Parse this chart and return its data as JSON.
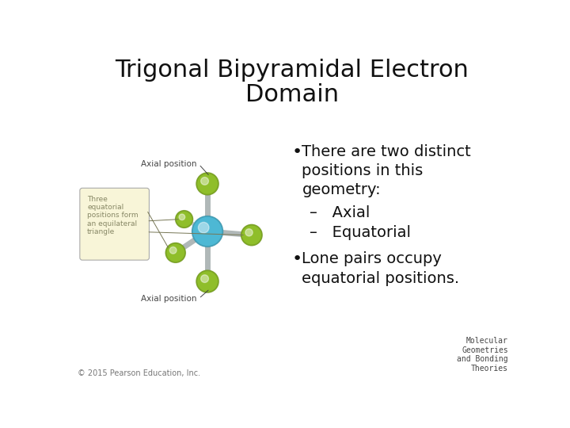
{
  "title_line1": "Trigonal Bipyramidal Electron",
  "title_line2": "Domain",
  "title_fontsize": 22,
  "title_fontweight": "normal",
  "title_color": "#111111",
  "background_color": "#ffffff",
  "bullet1_text": "There are two distinct\npositions in this\ngeometry:",
  "sub1": "–   Axial",
  "sub2": "–   Equatorial",
  "bullet2_text": "Lone pairs occupy\nequatorial positions.",
  "bullet_fontsize": 14,
  "sub_fontsize": 14,
  "footnote_left": "© 2015 Pearson Education, Inc.",
  "footnote_right": "Molecular\nGeometries\nand Bonding\nTheories",
  "footnote_fontsize": 7,
  "center_color": "#4db8d4",
  "green_color": "#8fbe2a",
  "bond_color": "#b0b8b8",
  "box_facecolor": "#f8f5d8",
  "box_edgecolor": "#aaaaaa",
  "box_text": "Three\nequatorial\npositions form\nan equilateral\ntriangle",
  "box_text_color": "#888866",
  "label_axial_top": "Axial position",
  "label_axial_bottom": "Axial position",
  "label_fontsize": 7.5,
  "label_color": "#444444"
}
